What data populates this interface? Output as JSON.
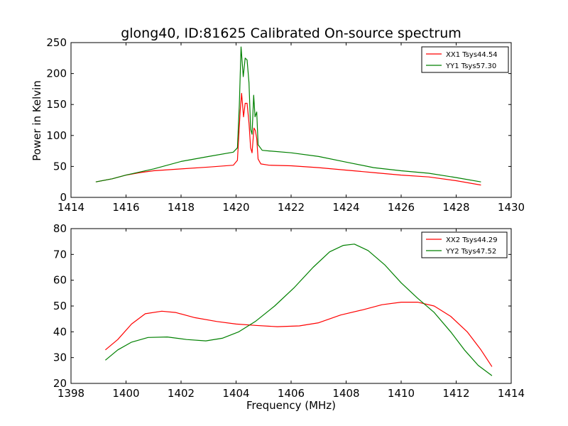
{
  "figure": {
    "title": "glong40, ID:81625 Calibrated On-source spectrum",
    "xlabel": "Frequency (MHz)",
    "ylabel": "Power in Kelvin"
  },
  "chart_data": [
    {
      "type": "line",
      "xlim": [
        1414,
        1430
      ],
      "ylim": [
        0,
        250
      ],
      "xticks": [
        1414,
        1416,
        1418,
        1420,
        1422,
        1424,
        1426,
        1428,
        1430
      ],
      "yticks": [
        0,
        50,
        100,
        150,
        200,
        250
      ],
      "legend_position": "top-right",
      "grid": false,
      "series": [
        {
          "name": "XX1 Tsys44.54",
          "color": "#ff0000",
          "points": [
            [
              1414.9,
              25
            ],
            [
              1415.5,
              30
            ],
            [
              1416,
              36
            ],
            [
              1416.5,
              40
            ],
            [
              1417,
              43
            ],
            [
              1418,
              46
            ],
            [
              1419,
              49
            ],
            [
              1419.9,
              52
            ],
            [
              1420.05,
              60
            ],
            [
              1420.15,
              140
            ],
            [
              1420.2,
              168
            ],
            [
              1420.27,
              130
            ],
            [
              1420.33,
              152
            ],
            [
              1420.4,
              152
            ],
            [
              1420.47,
              120
            ],
            [
              1420.53,
              80
            ],
            [
              1420.58,
              72
            ],
            [
              1420.65,
              112
            ],
            [
              1420.7,
              108
            ],
            [
              1420.75,
              95
            ],
            [
              1420.8,
              62
            ],
            [
              1420.9,
              54
            ],
            [
              1421.2,
              52
            ],
            [
              1422,
              51
            ],
            [
              1423,
              48
            ],
            [
              1424,
              44
            ],
            [
              1425,
              40
            ],
            [
              1426,
              36
            ],
            [
              1427,
              33
            ],
            [
              1428,
              27
            ],
            [
              1428.9,
              20
            ]
          ]
        },
        {
          "name": "YY1 Tsys57.30",
          "color": "#008000",
          "points": [
            [
              1414.9,
              25
            ],
            [
              1415.5,
              30
            ],
            [
              1416,
              36
            ],
            [
              1417,
              46
            ],
            [
              1418,
              58
            ],
            [
              1419,
              66
            ],
            [
              1419.9,
              73
            ],
            [
              1420.05,
              80
            ],
            [
              1420.12,
              150
            ],
            [
              1420.18,
              243
            ],
            [
              1420.26,
              195
            ],
            [
              1420.33,
              225
            ],
            [
              1420.4,
              222
            ],
            [
              1420.47,
              185
            ],
            [
              1420.53,
              110
            ],
            [
              1420.58,
              102
            ],
            [
              1420.64,
              165
            ],
            [
              1420.69,
              130
            ],
            [
              1420.75,
              138
            ],
            [
              1420.8,
              85
            ],
            [
              1420.95,
              76
            ],
            [
              1421.2,
              75
            ],
            [
              1422,
              72
            ],
            [
              1423,
              66
            ],
            [
              1424,
              57
            ],
            [
              1425,
              48
            ],
            [
              1426,
              43
            ],
            [
              1427,
              39
            ],
            [
              1428,
              32
            ],
            [
              1428.9,
              25
            ]
          ]
        }
      ]
    },
    {
      "type": "line",
      "xlim": [
        1398,
        1414
      ],
      "ylim": [
        20,
        80
      ],
      "xticks": [
        1398,
        1400,
        1402,
        1404,
        1406,
        1408,
        1410,
        1412,
        1414
      ],
      "yticks": [
        20,
        30,
        40,
        50,
        60,
        70,
        80
      ],
      "legend_position": "top-right",
      "grid": false,
      "series": [
        {
          "name": "XX2 Tsys44.29",
          "color": "#ff0000",
          "points": [
            [
              1399.25,
              33
            ],
            [
              1399.7,
              37
            ],
            [
              1400.2,
              43
            ],
            [
              1400.7,
              47
            ],
            [
              1401.3,
              48
            ],
            [
              1401.8,
              47.5
            ],
            [
              1402.5,
              45.5
            ],
            [
              1403.3,
              44
            ],
            [
              1404,
              43
            ],
            [
              1404.7,
              42.5
            ],
            [
              1405.5,
              42
            ],
            [
              1406.3,
              42.3
            ],
            [
              1407,
              43.5
            ],
            [
              1407.8,
              46.5
            ],
            [
              1408.6,
              48.5
            ],
            [
              1409.3,
              50.5
            ],
            [
              1410,
              51.5
            ],
            [
              1410.6,
              51.5
            ],
            [
              1411.2,
              50
            ],
            [
              1411.8,
              46
            ],
            [
              1412.4,
              40
            ],
            [
              1412.9,
              33
            ],
            [
              1413.3,
              26.5
            ]
          ]
        },
        {
          "name": "YY2 Tsys47.52",
          "color": "#008000",
          "points": [
            [
              1399.25,
              29
            ],
            [
              1399.7,
              33
            ],
            [
              1400.2,
              36
            ],
            [
              1400.8,
              37.8
            ],
            [
              1401.5,
              38
            ],
            [
              1402.2,
              37
            ],
            [
              1402.9,
              36.5
            ],
            [
              1403.5,
              37.5
            ],
            [
              1404.1,
              40
            ],
            [
              1404.7,
              44
            ],
            [
              1405.4,
              50
            ],
            [
              1406.1,
              57
            ],
            [
              1406.8,
              65
            ],
            [
              1407.4,
              71
            ],
            [
              1407.9,
              73.5
            ],
            [
              1408.3,
              74
            ],
            [
              1408.8,
              71.5
            ],
            [
              1409.4,
              66
            ],
            [
              1410,
              59
            ],
            [
              1410.6,
              53
            ],
            [
              1411.2,
              47.5
            ],
            [
              1411.8,
              40
            ],
            [
              1412.3,
              33
            ],
            [
              1412.8,
              27
            ],
            [
              1413.3,
              23
            ]
          ]
        }
      ]
    }
  ]
}
